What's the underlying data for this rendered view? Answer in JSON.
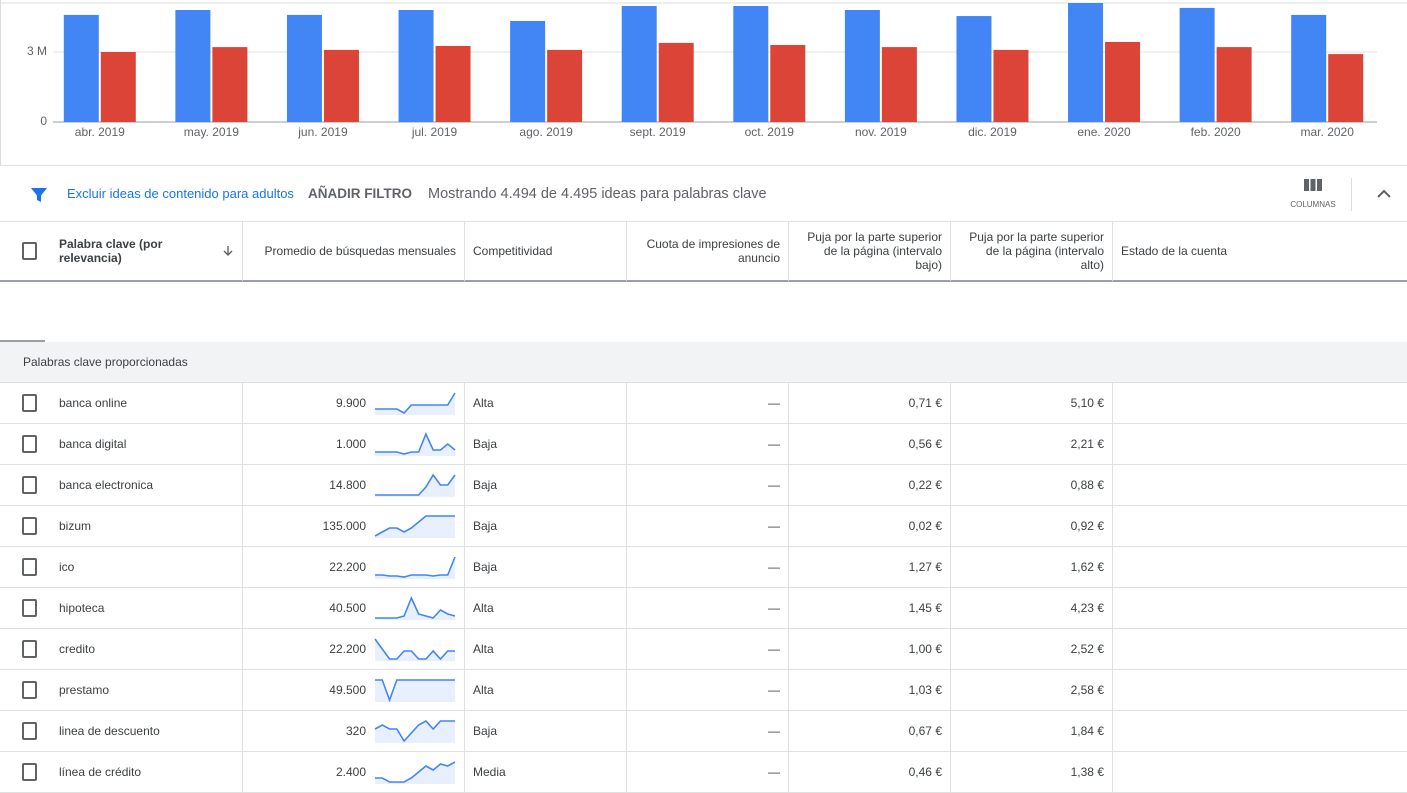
{
  "chart_data": {
    "type": "bar",
    "categories": [
      "abr. 2019",
      "may. 2019",
      "jun. 2019",
      "jul. 2019",
      "ago. 2019",
      "sept. 2019",
      "oct. 2019",
      "nov. 2019",
      "dic. 2019",
      "ene. 2020",
      "feb. 2020",
      "mar. 2020"
    ],
    "series": [
      {
        "color": "#4285f4",
        "values": [
          4590000,
          4800000,
          4590000,
          4800000,
          4330000,
          4970000,
          4970000,
          4800000,
          4540000,
          5100000,
          4890000,
          4590000
        ]
      },
      {
        "color": "#db4437",
        "values": [
          3000000,
          3210000,
          3090000,
          3260000,
          3090000,
          3390000,
          3300000,
          3210000,
          3090000,
          3430000,
          3210000,
          2910000
        ]
      }
    ],
    "ylim": [
      0,
      5100000
    ],
    "yticks": [
      0,
      {
        "value": 3000000,
        "label": "3 M"
      }
    ],
    "grid": true
  },
  "filter_bar": {
    "exclude_link": "Excluir ideas de contenido para adultos",
    "add_filter": "AÑADIR FILTRO",
    "showing": "Mostrando 4.494 de 4.495 ideas para palabras clave",
    "columns_label": "COLUMNAS"
  },
  "table": {
    "columns": [
      "Palabra clave (por relevancia)",
      "Promedio de búsquedas mensuales",
      "Competitividad",
      "Cuota de impresiones de anuncio",
      "Puja por la parte superior de la página (intervalo bajo)",
      "Puja por la parte superior de la página (intervalo alto)",
      "Estado de la cuenta"
    ],
    "group_label": "Palabras clave proporcionadas",
    "rows": [
      {
        "keyword": "banca online",
        "avg_searches": "9.900",
        "trend": [
          20,
          20,
          20,
          20,
          0,
          40,
          40,
          40,
          40,
          40,
          40,
          100
        ],
        "competition": "Alta",
        "impression_share": "—",
        "bid_low": "0,71 €",
        "bid_high": "5,10 €"
      },
      {
        "keyword": "banca digital",
        "avg_searches": "1.000",
        "trend": [
          10,
          10,
          10,
          10,
          0,
          10,
          10,
          100,
          20,
          20,
          50,
          20
        ],
        "competition": "Baja",
        "impression_share": "—",
        "bid_low": "0,56 €",
        "bid_high": "2,21 €"
      },
      {
        "keyword": "banca electronica",
        "avg_searches": "14.800",
        "trend": [
          0,
          0,
          0,
          0,
          0,
          0,
          0,
          40,
          100,
          50,
          50,
          100
        ],
        "competition": "Baja",
        "impression_share": "—",
        "bid_low": "0,22 €",
        "bid_high": "0,88 €"
      },
      {
        "keyword": "bizum",
        "avg_searches": "135.000",
        "trend": [
          0,
          20,
          40,
          40,
          20,
          40,
          70,
          100,
          100,
          100,
          100,
          100
        ],
        "competition": "Baja",
        "impression_share": "—",
        "bid_low": "0,02 €",
        "bid_high": "0,92 €"
      },
      {
        "keyword": "ico",
        "avg_searches": "22.200",
        "trend": [
          10,
          10,
          5,
          5,
          0,
          10,
          10,
          10,
          5,
          10,
          10,
          100
        ],
        "competition": "Baja",
        "impression_share": "—",
        "bid_low": "1,27 €",
        "bid_high": "1,62 €"
      },
      {
        "keyword": "hipoteca",
        "avg_searches": "40.500",
        "trend": [
          0,
          0,
          0,
          0,
          10,
          100,
          20,
          10,
          0,
          40,
          20,
          10
        ],
        "competition": "Alta",
        "impression_share": "—",
        "bid_low": "1,45 €",
        "bid_high": "4,23 €"
      },
      {
        "keyword": "credito",
        "avg_searches": "22.200",
        "trend": [
          100,
          50,
          0,
          0,
          40,
          40,
          0,
          0,
          40,
          0,
          40,
          40
        ],
        "competition": "Alta",
        "impression_share": "—",
        "bid_low": "1,00 €",
        "bid_high": "2,52 €"
      },
      {
        "keyword": "prestamo",
        "avg_searches": "49.500",
        "trend": [
          100,
          100,
          0,
          100,
          100,
          100,
          100,
          100,
          100,
          100,
          100,
          100
        ],
        "competition": "Alta",
        "impression_share": "—",
        "bid_low": "1,03 €",
        "bid_high": "2,58 €"
      },
      {
        "keyword": "linea de descuento",
        "avg_searches": "320",
        "trend": [
          60,
          80,
          60,
          60,
          0,
          40,
          80,
          100,
          60,
          100,
          100,
          100
        ],
        "competition": "Baja",
        "impression_share": "—",
        "bid_low": "0,67 €",
        "bid_high": "1,84 €"
      },
      {
        "keyword": "línea de crédito",
        "avg_searches": "2.400",
        "trend": [
          20,
          20,
          0,
          0,
          0,
          20,
          50,
          80,
          60,
          90,
          80,
          100
        ],
        "competition": "Media",
        "impression_share": "—",
        "bid_low": "0,46 €",
        "bid_high": "1,38 €"
      }
    ]
  }
}
